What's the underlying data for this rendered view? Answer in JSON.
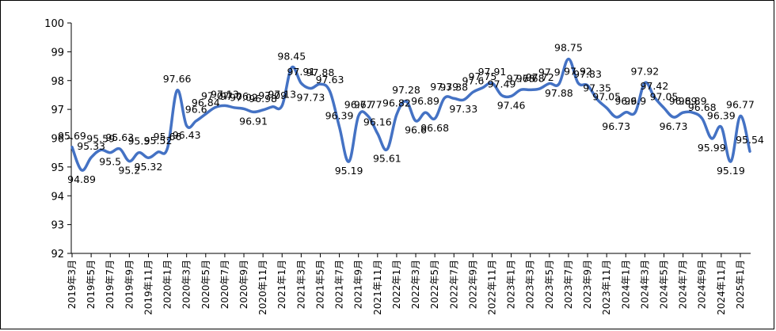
{
  "chart_data": {
    "type": "line",
    "title": "",
    "xlabel": "",
    "ylabel": "",
    "ylim": [
      92,
      100
    ],
    "yticks": [
      "92",
      "93",
      "94",
      "95",
      "96",
      "97",
      "98",
      "99",
      "100"
    ],
    "grid": false,
    "legend": "none",
    "line_color": "#4472C4",
    "x_tick_labels": [
      "2019年3月",
      "2019年5月",
      "2019年7月",
      "2019年9月",
      "2019年11月",
      "2020年1月",
      "2020年3月",
      "2020年5月",
      "2020年7月",
      "2020年9月",
      "2020年11月",
      "2021年1月",
      "2021年3月",
      "2021年5月",
      "2021年7月",
      "2021年9月",
      "2021年11月",
      "2022年1月",
      "2022年3月",
      "2022年5月",
      "2022年7月",
      "2022年9月",
      "2022年11月",
      "2023年1月",
      "2023年3月",
      "2023年5月",
      "2023年7月",
      "2023年9月",
      "2023年11月",
      "2024年1月",
      "2024年3月",
      "2024年5月",
      "2024年7月",
      "2024年9月",
      "2024年11月",
      "2025年1月"
    ],
    "series": [
      {
        "values": [
          95.69,
          94.89,
          95.33,
          95.59,
          95.5,
          95.63,
          95.2,
          95.5,
          95.32,
          95.52,
          95.66,
          97.66,
          96.43,
          96.6,
          96.84,
          97.07,
          97.13,
          97.06,
          97.02,
          96.91,
          96.98,
          97.09,
          97.13,
          98.45,
          97.91,
          97.73,
          97.88,
          97.63,
          96.39,
          95.19,
          96.77,
          96.77,
          96.16,
          95.61,
          96.82,
          97.28,
          96.6,
          96.89,
          96.68,
          97.39,
          97.38,
          97.33,
          97.6,
          97.75,
          97.91,
          97.49,
          97.46,
          97.68,
          97.68,
          97.72,
          97.9,
          97.88,
          98.75,
          97.92,
          97.83,
          97.35,
          97.05,
          96.73,
          96.9,
          96.9,
          97.92,
          97.42,
          97.05,
          96.73,
          96.89,
          96.89,
          96.68,
          95.99,
          96.39,
          95.19,
          96.77,
          95.54
        ],
        "labels": [
          "95.69",
          "94.89",
          "95.33",
          "95.59",
          "95.5",
          "95.63",
          "95.2",
          "95.5",
          "95.32",
          "95.52",
          "95.66",
          "97.66",
          "96.43",
          "96.6",
          "96.84",
          "97.07",
          "97.13",
          "97.06",
          "97.02",
          "96.91",
          "96.98",
          "97.09",
          "97.13",
          "98.45",
          "97.91",
          "97.73",
          "97.88",
          "97.63",
          "96.39",
          "95.19",
          "96.77",
          "96.77",
          "96.16",
          "95.61",
          "96.82",
          "97.28",
          "96.6",
          "96.89",
          "96.68",
          "97.39",
          "97.38",
          "97.33",
          "97.6",
          "97.75",
          "97.91",
          "97.49",
          "97.46",
          "97.68",
          "97.68",
          "97.72",
          "97.9",
          "97.88",
          "98.75",
          "97.92",
          "97.83",
          "97.35",
          "97.05",
          "96.73",
          "96.9",
          "96.9",
          "97.92",
          "97.42",
          "97.05",
          "96.73",
          "96.89",
          "96.89",
          "96.68",
          "95.99",
          "96.39",
          "95.19",
          "96.77",
          "95.54"
        ]
      }
    ]
  }
}
